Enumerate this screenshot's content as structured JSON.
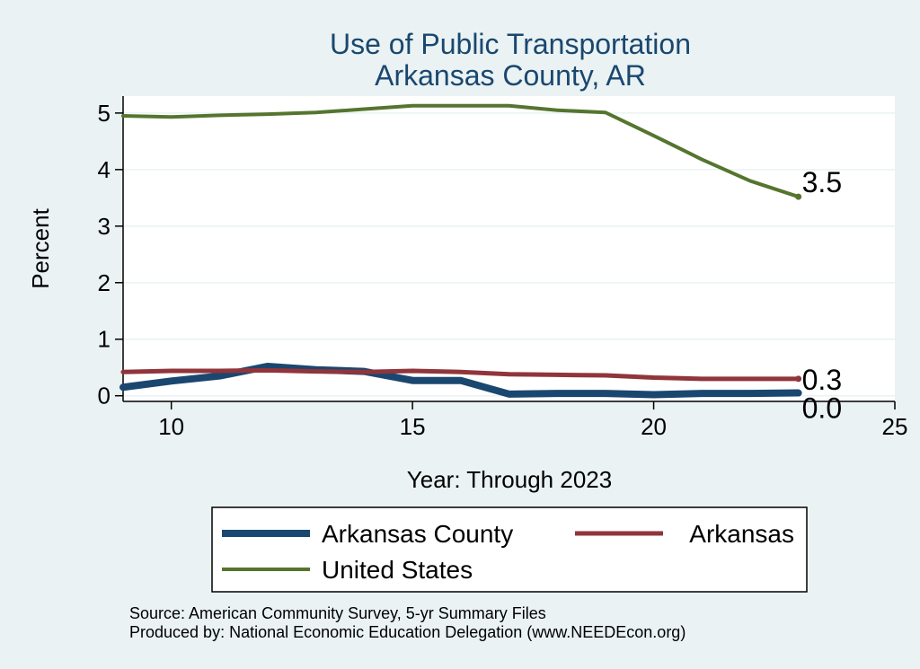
{
  "chart_data": {
    "type": "line",
    "title": "Use of Public Transportation",
    "subtitle": "Arkansas County, AR",
    "xlabel": "Year: Through 2023",
    "ylabel": "Percent",
    "xlim": [
      9,
      25
    ],
    "ylim": [
      -0.1,
      5.3
    ],
    "xticks": [
      10,
      15,
      20,
      25
    ],
    "yticks": [
      0,
      1,
      2,
      3,
      4,
      5
    ],
    "grid": true,
    "legend_position": "bottom",
    "x": [
      9,
      10,
      11,
      12,
      13,
      14,
      15,
      16,
      17,
      18,
      19,
      20,
      21,
      22,
      23
    ],
    "series": [
      {
        "name": "Arkansas County",
        "color": "#1a476f",
        "values": [
          0.15,
          0.26,
          0.35,
          0.52,
          0.46,
          0.43,
          0.27,
          0.27,
          0.03,
          0.04,
          0.04,
          0.02,
          0.04,
          0.04,
          0.05
        ],
        "end_label": "0.0"
      },
      {
        "name": "Arkansas",
        "color": "#90353b",
        "values": [
          0.42,
          0.44,
          0.44,
          0.45,
          0.43,
          0.42,
          0.44,
          0.42,
          0.38,
          0.37,
          0.36,
          0.32,
          0.3,
          0.3,
          0.3
        ],
        "end_label": "0.3"
      },
      {
        "name": "United States",
        "color": "#55752f",
        "values": [
          4.95,
          4.93,
          4.96,
          4.98,
          5.01,
          5.07,
          5.13,
          5.13,
          5.13,
          5.05,
          5.01,
          4.6,
          4.18,
          3.8,
          3.52
        ],
        "end_label": "3.5"
      }
    ],
    "notes": [
      "Source: American Community Survey, 5-yr Summary Files",
      "Produced by: National Economic Education Delegation (www.NEEDEcon.org)"
    ]
  }
}
